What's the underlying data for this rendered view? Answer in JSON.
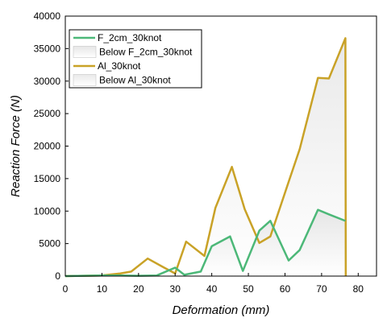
{
  "chart_data": {
    "type": "area",
    "xlabel": "Deformation (mm)",
    "ylabel": "Reaction Force (N)",
    "xlim": [
      0,
      85
    ],
    "ylim": [
      0,
      40000
    ],
    "x_ticks": [
      "0",
      "10",
      "20",
      "30",
      "40",
      "50",
      "60",
      "70",
      "80"
    ],
    "y_ticks": [
      "0",
      "5000",
      "10000",
      "15000",
      "20000",
      "25000",
      "30000",
      "35000",
      "40000"
    ],
    "grid": false,
    "legend_position": "top-left",
    "legend": {
      "entries": [
        "F_2cm_30knot",
        "Below F_2cm_30knot",
        "Al_30knot",
        "Below Al_30knot"
      ]
    },
    "series": [
      {
        "name": "F_2cm_30knot",
        "color": "#4cb878",
        "x": [
          0,
          5,
          10,
          15,
          20,
          25,
          30,
          32.5,
          37,
          40,
          45,
          48.5,
          53,
          56,
          61,
          64,
          69,
          72,
          76.5
        ],
        "y": [
          0,
          50,
          100,
          100,
          50,
          100,
          1300,
          200,
          700,
          4600,
          6100,
          800,
          7000,
          8500,
          2400,
          4000,
          10200,
          9500,
          8500
        ]
      },
      {
        "name": "Al_30knot",
        "color": "#c9a227",
        "x": [
          0,
          5,
          10,
          15,
          18,
          22.5,
          27,
          30,
          33,
          38,
          41,
          45.5,
          49,
          53,
          56,
          61,
          64,
          69,
          72,
          76.5,
          76.6
        ],
        "y": [
          0,
          50,
          100,
          400,
          700,
          2700,
          1300,
          400,
          5300,
          3100,
          10500,
          16800,
          10300,
          5100,
          6100,
          14500,
          19500,
          30500,
          30400,
          36600,
          0
        ]
      }
    ]
  }
}
